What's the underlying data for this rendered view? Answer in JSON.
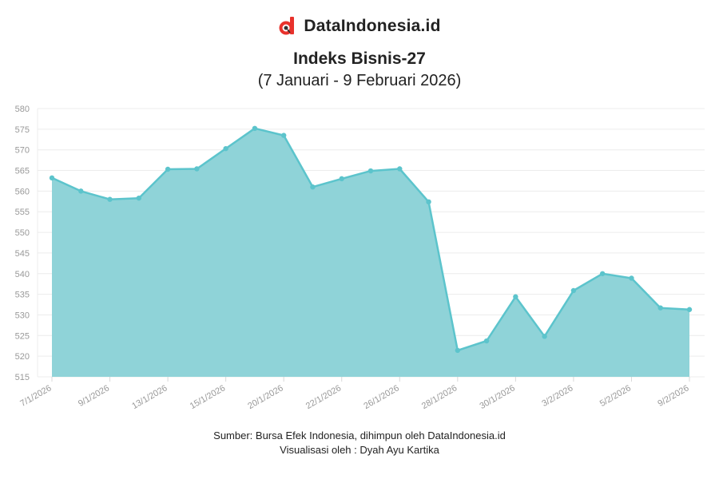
{
  "brand": {
    "name": "DataIndonesia.id",
    "logo_icon": "datindonesia-logo-icon",
    "logo_color": "#e8322c"
  },
  "footer": {
    "source": "Sumber: Bursa Efek Indonesia, dihimpun oleh DataIndonesia.id",
    "credit": "Visualisasi oleh : Dyah Ayu Kartika"
  },
  "chart_data": {
    "type": "area",
    "title": "Indeks Bisnis-27",
    "subtitle": "(7 Januari - 9 Februari 2026)",
    "xlabel": "",
    "ylabel": "",
    "ylim": [
      515,
      580
    ],
    "yticks": [
      515,
      520,
      525,
      530,
      535,
      540,
      545,
      550,
      555,
      560,
      565,
      570,
      575,
      580
    ],
    "grid": true,
    "legend": "none",
    "color": "#5cc4cc",
    "fill_color": "#8fd3d8",
    "x": [
      "7/1/2026",
      "8/1/2026",
      "9/1/2026",
      "12/1/2026",
      "13/1/2026",
      "14/1/2026",
      "15/1/2026",
      "16/1/2026",
      "20/1/2026",
      "21/1/2026",
      "22/1/2026",
      "23/1/2026",
      "26/1/2026",
      "27/1/2026",
      "28/1/2026",
      "29/1/2026",
      "30/1/2026",
      "2/2/2026",
      "3/2/2026",
      "4/2/2026",
      "5/2/2026",
      "6/2/2026",
      "9/2/2026"
    ],
    "x_tick_labels": [
      "7/1/2026",
      "9/1/2026",
      "13/1/2026",
      "15/1/2026",
      "20/1/2026",
      "22/1/2026",
      "26/1/2026",
      "28/1/2026",
      "30/1/2026",
      "3/2/2026",
      "5/2/2026",
      "9/2/2026"
    ],
    "values": [
      563.2,
      560.0,
      558.0,
      558.3,
      565.3,
      565.4,
      570.3,
      575.2,
      573.5,
      561.0,
      563.0,
      564.9,
      565.4,
      557.4,
      521.4,
      523.7,
      534.4,
      524.8,
      535.9,
      540.0,
      538.9,
      531.7,
      531.3
    ]
  }
}
